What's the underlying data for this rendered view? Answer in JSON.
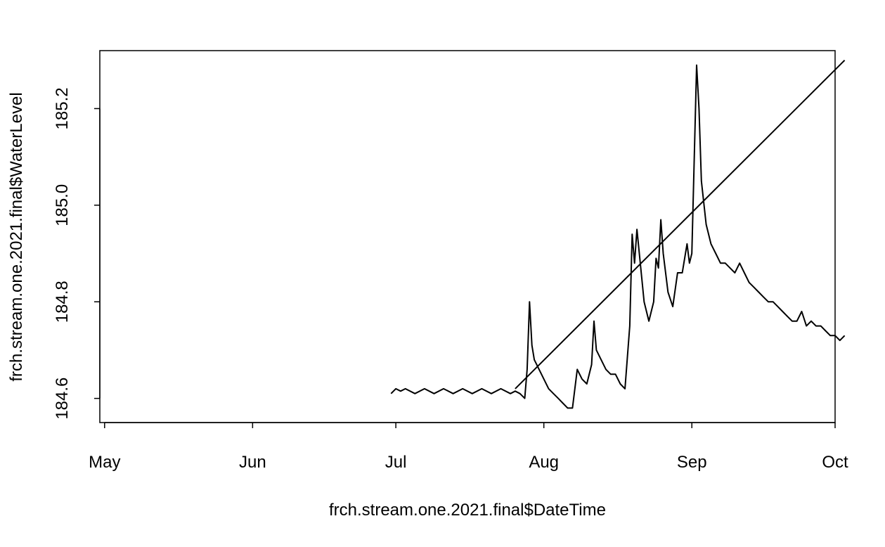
{
  "chart_data": {
    "type": "line",
    "title": "",
    "xlabel": "frch.stream.one.2021.final$DateTime",
    "ylabel": "frch.stream.one.2021.final$WaterLevel",
    "x_ticks": [
      "May",
      "Jun",
      "Jul",
      "Aug",
      "Sep",
      "Oct"
    ],
    "x_tick_dates": [
      "2021-05-01",
      "2021-06-01",
      "2021-07-01",
      "2021-08-01",
      "2021-09-01",
      "2021-10-01"
    ],
    "y_ticks": [
      "184.6",
      "184.8",
      "185.0",
      "185.2"
    ],
    "y_tick_values": [
      184.6,
      184.8,
      185.0,
      185.2
    ],
    "xlim": [
      "2021-04-30",
      "2021-10-01"
    ],
    "ylim": [
      184.55,
      185.32
    ],
    "grid": false,
    "legend": "none",
    "color": "#000000",
    "series": [
      {
        "points": [
          [
            "2021-06-30",
            184.61
          ],
          [
            "2021-07-01",
            184.62
          ],
          [
            "2021-07-02",
            184.615
          ],
          [
            "2021-07-03",
            184.62
          ],
          [
            "2021-07-05",
            184.61
          ],
          [
            "2021-07-07",
            184.62
          ],
          [
            "2021-07-09",
            184.61
          ],
          [
            "2021-07-11",
            184.62
          ],
          [
            "2021-07-13",
            184.61
          ],
          [
            "2021-07-15",
            184.62
          ],
          [
            "2021-07-17",
            184.61
          ],
          [
            "2021-07-19",
            184.62
          ],
          [
            "2021-07-21",
            184.61
          ],
          [
            "2021-07-23",
            184.62
          ],
          [
            "2021-07-25",
            184.61
          ],
          [
            "2021-07-26",
            184.615
          ],
          [
            "2021-07-27",
            184.61
          ],
          [
            "2021-07-28",
            184.6
          ],
          [
            "2021-07-28T12:00",
            184.66
          ],
          [
            "2021-07-29",
            184.8
          ],
          [
            "2021-07-29T12:00",
            184.71
          ],
          [
            "2021-07-30",
            184.68
          ],
          [
            "2021-07-31",
            184.66
          ],
          [
            "2021-08-01",
            184.64
          ],
          [
            "2021-08-02",
            184.62
          ],
          [
            "2021-08-03",
            184.61
          ],
          [
            "2021-08-04",
            184.6
          ],
          [
            "2021-08-05",
            184.59
          ],
          [
            "2021-08-06",
            184.58
          ],
          [
            "2021-08-07",
            184.58
          ],
          [
            "2021-08-08",
            184.66
          ],
          [
            "2021-08-09",
            184.64
          ],
          [
            "2021-08-10",
            184.63
          ],
          [
            "2021-08-11",
            184.67
          ],
          [
            "2021-08-11T12:00",
            184.76
          ],
          [
            "2021-08-12",
            184.7
          ],
          [
            "2021-08-13",
            184.68
          ],
          [
            "2021-08-14",
            184.66
          ],
          [
            "2021-08-15",
            184.65
          ],
          [
            "2021-08-16",
            184.65
          ],
          [
            "2021-08-17",
            184.63
          ],
          [
            "2021-08-18",
            184.62
          ],
          [
            "2021-08-19",
            184.75
          ],
          [
            "2021-08-19T12:00",
            184.94
          ],
          [
            "2021-08-20",
            184.88
          ],
          [
            "2021-08-20T12:00",
            184.95
          ],
          [
            "2021-08-21",
            184.9
          ],
          [
            "2021-08-22",
            184.8
          ],
          [
            "2021-08-23",
            184.76
          ],
          [
            "2021-08-24",
            184.8
          ],
          [
            "2021-08-24T12:00",
            184.89
          ],
          [
            "2021-08-25",
            184.87
          ],
          [
            "2021-08-25T12:00",
            184.97
          ],
          [
            "2021-08-26",
            184.9
          ],
          [
            "2021-08-27",
            184.82
          ],
          [
            "2021-08-28",
            184.79
          ],
          [
            "2021-08-29",
            184.86
          ],
          [
            "2021-08-30",
            184.86
          ],
          [
            "2021-08-31",
            184.92
          ],
          [
            "2021-08-31T12:00",
            184.88
          ],
          [
            "2021-09-01",
            184.9
          ],
          [
            "2021-09-02",
            185.29
          ],
          [
            "2021-09-02T12:00",
            185.2
          ],
          [
            "2021-09-03",
            185.05
          ],
          [
            "2021-09-04",
            184.96
          ],
          [
            "2021-09-05",
            184.92
          ],
          [
            "2021-09-06",
            184.9
          ],
          [
            "2021-09-07",
            184.88
          ],
          [
            "2021-09-08",
            184.88
          ],
          [
            "2021-09-09",
            184.87
          ],
          [
            "2021-09-10",
            184.86
          ],
          [
            "2021-09-11",
            184.88
          ],
          [
            "2021-09-12",
            184.86
          ],
          [
            "2021-09-13",
            184.84
          ],
          [
            "2021-09-14",
            184.83
          ],
          [
            "2021-09-15",
            184.82
          ],
          [
            "2021-09-16",
            184.81
          ],
          [
            "2021-09-17",
            184.8
          ],
          [
            "2021-09-18",
            184.8
          ],
          [
            "2021-09-19",
            184.79
          ],
          [
            "2021-09-20",
            184.78
          ],
          [
            "2021-09-21",
            184.77
          ],
          [
            "2021-09-22",
            184.76
          ],
          [
            "2021-09-23",
            184.76
          ],
          [
            "2021-09-24",
            184.78
          ],
          [
            "2021-09-25",
            184.75
          ],
          [
            "2021-09-26",
            184.76
          ],
          [
            "2021-09-27",
            184.75
          ],
          [
            "2021-09-28",
            184.75
          ],
          [
            "2021-09-29",
            184.74
          ],
          [
            "2021-09-30",
            184.73
          ],
          [
            "2021-10-01",
            184.73
          ],
          [
            "2021-10-02",
            184.72
          ],
          [
            "2021-10-03",
            184.73
          ]
        ]
      },
      {
        "points": [
          [
            "2021-07-26",
            184.62
          ],
          [
            "2021-10-03",
            185.3
          ]
        ]
      }
    ]
  }
}
